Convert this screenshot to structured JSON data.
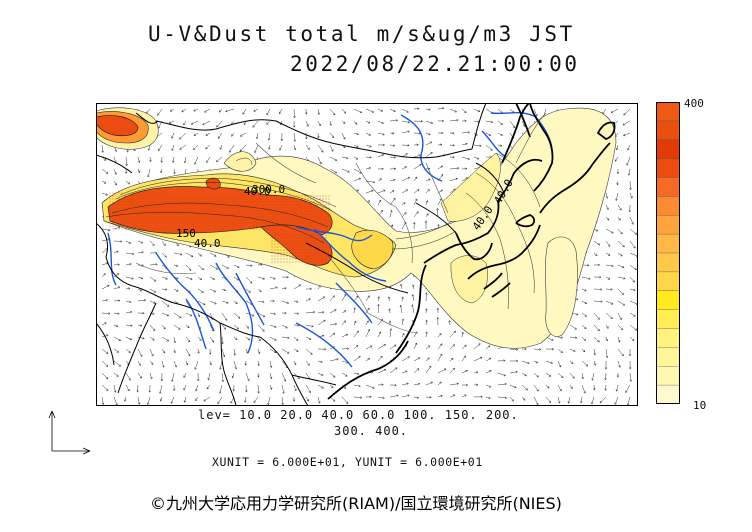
{
  "title": {
    "line1": "U-V&Dust total m/s&ug/m3 JST",
    "line2": "2022/08/22.21:00:00"
  },
  "levels": {
    "line1": "lev= 10.0 20.0 40.0 60.0 100. 150. 200.",
    "line2": "300. 400."
  },
  "units": "XUNIT = 6.000E+01, YUNIT = 6.000E+01",
  "colorbar": {
    "max_label": "400",
    "min_label": "10",
    "colors": [
      "#FFFACD",
      "#FFF8B3",
      "#FFF59A",
      "#FFF27F",
      "#FFEE55",
      "#FFEA1F",
      "#FFD64A",
      "#FFC84A",
      "#FFB845",
      "#FFA33B",
      "#FB8A30",
      "#F56B25",
      "#EC4C10",
      "#E23A0A",
      "#E8500F",
      "#EE5A14"
    ]
  },
  "contour_labels": [
    {
      "text": "40.0"
    },
    {
      "text": "150"
    },
    {
      "text": "40.0"
    },
    {
      "text": "300.0"
    },
    {
      "text": "40.0"
    },
    {
      "text": "40.0"
    }
  ],
  "colors": {
    "coast": "#000000",
    "border": "#000000",
    "river": "#1a55e0",
    "low_dust": "#FFF8B8",
    "mid_dust": "#FFEB3B",
    "high_dust": "#F0581A"
  },
  "copyright": "©九州大学応用力学研究所(RIAM)/国立環境研究所(NIES)"
}
